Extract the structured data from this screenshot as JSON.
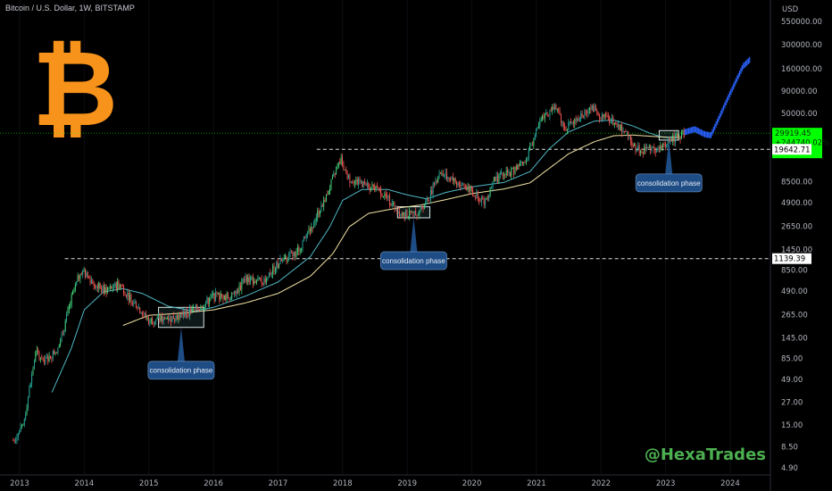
{
  "header": {
    "title": "Bitcoin / U.S. Dollar, 1W, BITSTAMP"
  },
  "axis": {
    "currency": "USD"
  },
  "watermark": "@HexaTrades",
  "logo": {
    "symbol": "₿",
    "color": "#f7931a"
  },
  "colors": {
    "up": "#26a69a",
    "up_bright": "#43d17a",
    "down": "#ef5350",
    "forecast": "#2962ff",
    "ma_fast": "#4fb8c6",
    "ma_slow": "#f3e6a6",
    "current_price": "#00ff00",
    "callout": "#1e4c84"
  },
  "chart_data": {
    "type": "candlestick",
    "scale": "log",
    "ylim": [
      4.9,
      550000
    ],
    "y_ticks": [
      "550000.00",
      "300000.00",
      "160000.00",
      "90000.00",
      "50000.00",
      "8500.00",
      "4900.00",
      "2650.00",
      "1450.00",
      "850.00",
      "490.00",
      "265.00",
      "145.00",
      "85.00",
      "49.00",
      "27.00",
      "15.00",
      "8.50",
      "4.90"
    ],
    "x_ticks": [
      "2013",
      "2014",
      "2015",
      "2016",
      "2017",
      "2018",
      "2019",
      "2020",
      "2021",
      "2022",
      "2023",
      "2024"
    ],
    "price_path": [
      [
        2012.9,
        10
      ],
      [
        2013.05,
        14
      ],
      [
        2013.25,
        100
      ],
      [
        2013.4,
        80
      ],
      [
        2013.6,
        110
      ],
      [
        2013.8,
        400
      ],
      [
        2013.95,
        850
      ],
      [
        2014.1,
        650
      ],
      [
        2014.3,
        500
      ],
      [
        2014.55,
        580
      ],
      [
        2014.75,
        380
      ],
      [
        2015.0,
        230
      ],
      [
        2015.3,
        240
      ],
      [
        2015.5,
        260
      ],
      [
        2015.8,
        330
      ],
      [
        2016.0,
        430
      ],
      [
        2016.3,
        420
      ],
      [
        2016.5,
        680
      ],
      [
        2016.75,
        620
      ],
      [
        2017.0,
        1000
      ],
      [
        2017.3,
        1400
      ],
      [
        2017.5,
        2500
      ],
      [
        2017.75,
        6000
      ],
      [
        2017.97,
        15000
      ],
      [
        2018.1,
        9000
      ],
      [
        2018.3,
        8000
      ],
      [
        2018.6,
        6500
      ],
      [
        2018.9,
        3700
      ],
      [
        2019.1,
        3600
      ],
      [
        2019.3,
        5000
      ],
      [
        2019.5,
        11000
      ],
      [
        2019.8,
        8000
      ],
      [
        2019.95,
        7200
      ],
      [
        2020.2,
        5000
      ],
      [
        2020.35,
        9000
      ],
      [
        2020.6,
        11000
      ],
      [
        2020.8,
        13500
      ],
      [
        2020.95,
        25000
      ],
      [
        2021.1,
        45000
      ],
      [
        2021.3,
        58000
      ],
      [
        2021.45,
        35000
      ],
      [
        2021.6,
        40000
      ],
      [
        2021.85,
        62000
      ],
      [
        2022.0,
        46000
      ],
      [
        2022.2,
        42000
      ],
      [
        2022.4,
        30000
      ],
      [
        2022.55,
        20000
      ],
      [
        2022.75,
        20000
      ],
      [
        2022.9,
        19000
      ],
      [
        2023.0,
        22000
      ],
      [
        2023.15,
        27000
      ],
      [
        2023.3,
        29919.45
      ]
    ],
    "forecast_path": [
      [
        2023.3,
        30500
      ],
      [
        2023.45,
        33000
      ],
      [
        2023.6,
        29000
      ],
      [
        2023.7,
        28000
      ],
      [
        2023.8,
        40000
      ],
      [
        2023.95,
        70000
      ],
      [
        2024.1,
        120000
      ],
      [
        2024.2,
        170000
      ],
      [
        2024.3,
        200000
      ]
    ],
    "ma_fast_path": [
      [
        2013.5,
        35
      ],
      [
        2013.8,
        110
      ],
      [
        2014.0,
        300
      ],
      [
        2014.3,
        480
      ],
      [
        2014.6,
        520
      ],
      [
        2014.9,
        460
      ],
      [
        2015.3,
        330
      ],
      [
        2015.7,
        290
      ],
      [
        2016.0,
        320
      ],
      [
        2016.5,
        430
      ],
      [
        2017.0,
        620
      ],
      [
        2017.5,
        1200
      ],
      [
        2017.8,
        2600
      ],
      [
        2018.0,
        5200
      ],
      [
        2018.3,
        6900
      ],
      [
        2018.7,
        6900
      ],
      [
        2019.0,
        6000
      ],
      [
        2019.3,
        5400
      ],
      [
        2019.6,
        6400
      ],
      [
        2020.0,
        7400
      ],
      [
        2020.5,
        8300
      ],
      [
        2020.9,
        11000
      ],
      [
        2021.2,
        20000
      ],
      [
        2021.5,
        31000
      ],
      [
        2021.9,
        41000
      ],
      [
        2022.2,
        42000
      ],
      [
        2022.5,
        36000
      ],
      [
        2022.75,
        30000
      ],
      [
        2022.95,
        27000
      ],
      [
        2023.2,
        26500
      ]
    ],
    "ma_slow_path": [
      [
        2014.6,
        200
      ],
      [
        2015.0,
        260
      ],
      [
        2015.5,
        275
      ],
      [
        2016.0,
        300
      ],
      [
        2016.5,
        360
      ],
      [
        2017.0,
        460
      ],
      [
        2017.5,
        720
      ],
      [
        2017.85,
        1300
      ],
      [
        2018.1,
        2600
      ],
      [
        2018.4,
        3700
      ],
      [
        2018.8,
        4200
      ],
      [
        2019.2,
        4600
      ],
      [
        2019.6,
        5300
      ],
      [
        2020.0,
        6200
      ],
      [
        2020.5,
        7000
      ],
      [
        2020.9,
        8200
      ],
      [
        2021.2,
        12000
      ],
      [
        2021.5,
        17500
      ],
      [
        2021.9,
        24000
      ],
      [
        2022.2,
        28000
      ],
      [
        2022.5,
        28500
      ],
      [
        2022.8,
        27500
      ],
      [
        2023.0,
        27000
      ],
      [
        2023.2,
        26800
      ]
    ],
    "ath_lines": [
      {
        "value": 1139.39,
        "label": "1139.39",
        "x_start": 2013.7
      },
      {
        "value": 19642.71,
        "label": "19642.71",
        "x_start": 2017.6
      }
    ],
    "current_price": {
      "value": 29919.45,
      "label": "29919.45",
      "change": "+244740.02%",
      "countdown": "3d 17h"
    },
    "consolidation_zones": [
      {
        "x0": 2015.15,
        "x1": 2015.85,
        "y0": 190,
        "y1": 320,
        "label": "consolidation phase"
      },
      {
        "x0": 2018.85,
        "x1": 2019.35,
        "y0": 3300,
        "y1": 4400,
        "label": "consolidation phase"
      },
      {
        "x0": 2022.9,
        "x1": 2023.2,
        "y0": 25000,
        "y1": 32000,
        "label": "consolidation phase"
      }
    ]
  }
}
